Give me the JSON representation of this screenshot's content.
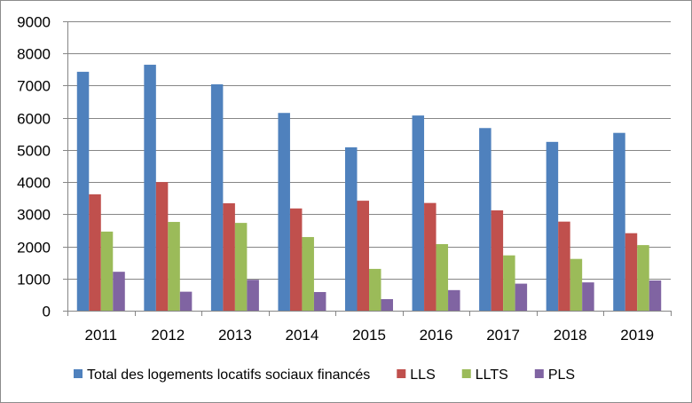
{
  "chart_data": {
    "type": "bar",
    "title": "",
    "xlabel": "",
    "ylabel": "",
    "ylim": [
      0,
      9000
    ],
    "yticks": [
      0,
      1000,
      2000,
      3000,
      4000,
      5000,
      6000,
      7000,
      8000,
      9000
    ],
    "grid": true,
    "legend_position": "bottom",
    "categories": [
      "2011",
      "2012",
      "2013",
      "2014",
      "2015",
      "2016",
      "2017",
      "2018",
      "2019"
    ],
    "series": [
      {
        "name": "Total des logements locatifs sociaux financés",
        "color": "#4f81bd",
        "values": [
          7430,
          7650,
          7040,
          6150,
          5080,
          6070,
          5680,
          5250,
          5530
        ]
      },
      {
        "name": "LLS",
        "color": "#c0504d",
        "values": [
          3620,
          4000,
          3340,
          3180,
          3420,
          3350,
          3120,
          2770,
          2410
        ]
      },
      {
        "name": "LLTS",
        "color": "#9bbb59",
        "values": [
          2460,
          2760,
          2730,
          2290,
          1300,
          2070,
          1720,
          1610,
          2040
        ]
      },
      {
        "name": "PLS",
        "color": "#8064a2",
        "values": [
          1210,
          590,
          960,
          580,
          360,
          640,
          840,
          880,
          940
        ]
      }
    ]
  }
}
